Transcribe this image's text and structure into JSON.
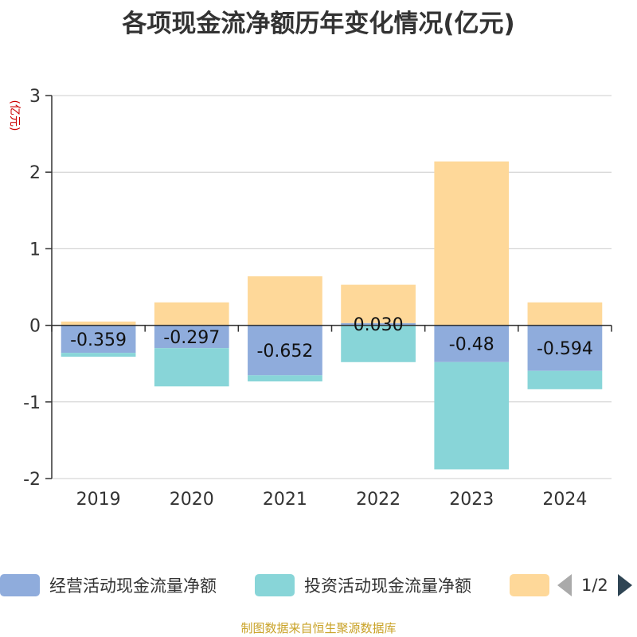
{
  "title": "各项现金流净额历年变化情况(亿元)",
  "source_note": "制图数据来自恒生聚源数据库",
  "legend_pager": {
    "text": "1/2"
  },
  "chart_data": {
    "type": "bar",
    "stacked": true,
    "ylabel": "(亿元)",
    "ylim": [
      -2,
      3
    ],
    "yticks": [
      -2,
      -1,
      0,
      1,
      2,
      3
    ],
    "grid": true,
    "legend_position": "bottom",
    "categories": [
      "2019",
      "2020",
      "2021",
      "2022",
      "2023",
      "2024"
    ],
    "series": [
      {
        "name": "经营活动现金流量净额",
        "color": "#8facdc",
        "values": [
          -0.359,
          -0.297,
          -0.652,
          0.03,
          -0.48,
          -0.594
        ],
        "labels": [
          "-0.359",
          "-0.297",
          "-0.652",
          "0.030",
          "-0.48",
          "-0.594"
        ]
      },
      {
        "name": "投资活动现金流量净额",
        "color": "#88d5d8",
        "values": [
          -0.05,
          -0.5,
          -0.08,
          -0.48,
          -1.4,
          -0.24
        ],
        "labels": []
      },
      {
        "name": "",
        "color": "#fed899",
        "values": [
          0.05,
          0.3,
          0.64,
          0.5,
          2.14,
          0.3
        ],
        "labels": []
      }
    ]
  }
}
